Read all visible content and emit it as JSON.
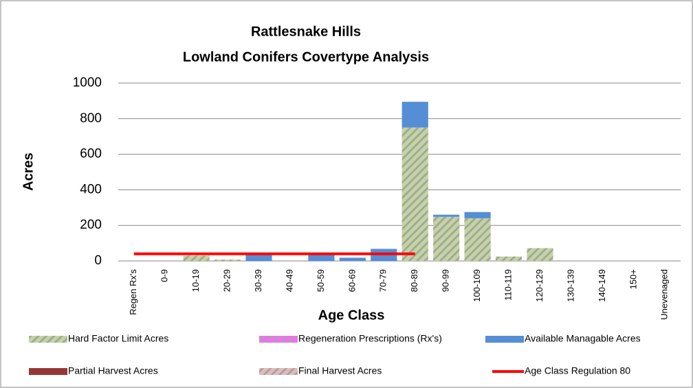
{
  "chart_data": {
    "type": "bar",
    "stacked": true,
    "title": [
      "Rattlesnake Hills",
      "Lowland Conifers Covertype Analysis"
    ],
    "x_label": "Age Class",
    "y_label": "Acres",
    "categories": [
      "Regen Rx's",
      "0-9",
      "10-19",
      "20-29",
      "30-39",
      "40-49",
      "50-59",
      "60-69",
      "70-79",
      "80-89",
      "90-99",
      "100-109",
      "110-119",
      "120-129",
      "130-139",
      "140-149",
      "150+",
      "Unevenaged"
    ],
    "series": [
      {
        "name": "Hard Factor Limit Acres",
        "color": "#c3d69b",
        "hatch": true,
        "values": [
          0,
          0,
          30,
          8,
          0,
          0,
          0,
          0,
          0,
          750,
          248,
          240,
          25,
          72,
          0,
          0,
          0,
          0
        ]
      },
      {
        "name": "Regeneration Prescriptions (Rx's)",
        "color": "#ff66ff",
        "hatch": true,
        "values": [
          0,
          0,
          0,
          0,
          0,
          0,
          0,
          0,
          0,
          0,
          0,
          0,
          0,
          0,
          0,
          0,
          0,
          0
        ]
      },
      {
        "name": "Available Managable Acres",
        "color": "#558ed5",
        "values": [
          0,
          0,
          0,
          0,
          35,
          0,
          35,
          18,
          68,
          145,
          12,
          35,
          0,
          0,
          0,
          0,
          0,
          0
        ]
      },
      {
        "name": "Partial Harvest Acres",
        "color": "#953735",
        "values": [
          0,
          0,
          0,
          0,
          0,
          0,
          0,
          0,
          0,
          0,
          0,
          0,
          0,
          0,
          0,
          0,
          0,
          0
        ]
      },
      {
        "name": "Final Harvest Acres",
        "color": "#e6b9b8",
        "hatch": true,
        "values": [
          0,
          0,
          0,
          0,
          0,
          0,
          0,
          0,
          0,
          0,
          0,
          0,
          0,
          0,
          0,
          0,
          0,
          0
        ]
      },
      {
        "name": "Age Class Regulation 80",
        "color": "#ff0000",
        "type": "line",
        "values": [
          40,
          40,
          40,
          40,
          40,
          40,
          40,
          40,
          40,
          40,
          null,
          null,
          null,
          null,
          null,
          null,
          null,
          null
        ]
      }
    ],
    "ylim": [
      0,
      1000
    ],
    "yticks": [
      0,
      200,
      400,
      600,
      800,
      1000
    ],
    "grid": true
  }
}
